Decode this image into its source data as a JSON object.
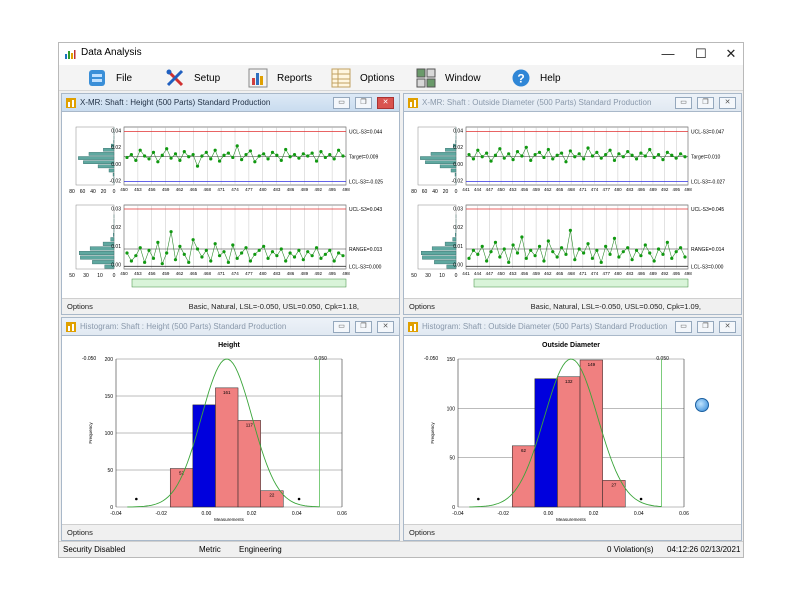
{
  "app": {
    "title": "Data Analysis",
    "window_controls": {
      "minimize": "—",
      "maximize": "☐",
      "close": "✕"
    }
  },
  "menu": [
    {
      "label": "File",
      "icon": "file-cabinet-icon"
    },
    {
      "label": "Setup",
      "icon": "tools-icon"
    },
    {
      "label": "Reports",
      "icon": "bar-report-icon"
    },
    {
      "label": "Options",
      "icon": "options-grid-icon"
    },
    {
      "label": "Window",
      "icon": "window-tile-icon"
    },
    {
      "label": "Help",
      "icon": "help-icon"
    }
  ],
  "windows": {
    "xmr_height": {
      "title": "X-MR: Shaft : Height (500 Parts) Standard Production",
      "options_label": "Options",
      "info": "Basic, Natural, LSL=-0.050, USL=0.050, Cpk=1.18,",
      "x_chart": {
        "ucl": "UCL-S3=0.044",
        "target": "Target=0.009",
        "lcl": "LCL-S3=-0.025",
        "yticks": [
          "0.04",
          "0.02",
          "0.00",
          "-0.02"
        ],
        "hist_xticks": [
          "80",
          "60",
          "40",
          "20",
          "0"
        ],
        "x_ticks": [
          "450",
          "453",
          "456",
          "459",
          "462",
          "465",
          "468",
          "471",
          "474",
          "477",
          "480",
          "483",
          "486",
          "489",
          "492",
          "495",
          "498"
        ],
        "values": [
          0.008,
          0.012,
          0.004,
          0.018,
          0.01,
          0.006,
          0.015,
          0.002,
          0.011,
          0.02,
          0.007,
          0.013,
          0.004,
          0.016,
          0.009,
          0.012,
          -0.004,
          0.01,
          0.015,
          0.006,
          0.018,
          0.003,
          0.011,
          0.014,
          0.008,
          0.024,
          0.005,
          0.012,
          0.017,
          0.002,
          0.01,
          0.013,
          0.006,
          0.015,
          0.011,
          0.004,
          0.019,
          0.009,
          0.012,
          0.007,
          0.013,
          0.01,
          0.014,
          0.003,
          0.016,
          0.008,
          0.012,
          0.006,
          0.018,
          0.01
        ]
      },
      "mr_chart": {
        "ucl": "UCL-S3=0.043",
        "range": "RANGE=0.013",
        "lcl": "LCL-S3=0.000",
        "yticks": [
          "0.03",
          "0.02",
          "0.01",
          "0.00"
        ],
        "hist_xticks": [
          "50",
          "30",
          "10",
          "0"
        ],
        "x_ticks": [
          "450",
          "453",
          "456",
          "459",
          "462",
          "465",
          "468",
          "471",
          "474",
          "477",
          "480",
          "483",
          "486",
          "489",
          "492",
          "495",
          "498"
        ],
        "values": [
          0.01,
          0.004,
          0.008,
          0.014,
          0.003,
          0.012,
          0.006,
          0.018,
          0.002,
          0.01,
          0.026,
          0.005,
          0.015,
          0.009,
          0.003,
          0.02,
          0.013,
          0.007,
          0.012,
          0.004,
          0.017,
          0.008,
          0.011,
          0.003,
          0.016,
          0.006,
          0.01,
          0.014,
          0.004,
          0.009,
          0.012,
          0.015,
          0.006,
          0.011,
          0.008,
          0.013,
          0.004,
          0.01,
          0.007,
          0.012,
          0.005,
          0.011,
          0.008,
          0.014,
          0.006,
          0.009,
          0.012,
          0.004,
          0.01,
          0.008
        ]
      }
    },
    "xmr_od": {
      "title": "X-MR: Shaft : Outside Diameter (500 Parts) Standard Production",
      "options_label": "Options",
      "info": "Basic, Natural, LSL=-0.050, USL=0.050, Cpk=1.09,",
      "x_chart": {
        "ucl": "UCL-S3=0.047",
        "target": "Target=0.010",
        "lcl": "LCL-S3=-0.027",
        "yticks": [
          "0.04",
          "0.02",
          "0.00",
          "-0.02"
        ],
        "hist_xticks": [
          "80",
          "60",
          "40",
          "20",
          "0"
        ],
        "x_ticks": [
          "441",
          "444",
          "447",
          "450",
          "453",
          "456",
          "459",
          "462",
          "465",
          "468",
          "471",
          "474",
          "477",
          "480",
          "483",
          "486",
          "489",
          "492",
          "495",
          "498"
        ],
        "values": [
          0.012,
          0.006,
          0.018,
          0.009,
          0.014,
          0.003,
          0.011,
          0.02,
          0.007,
          0.013,
          0.005,
          0.016,
          0.01,
          0.022,
          0.004,
          0.012,
          0.015,
          0.008,
          0.019,
          0.006,
          0.011,
          0.014,
          0.002,
          0.017,
          0.009,
          0.013,
          0.006,
          0.021,
          0.01,
          0.015,
          0.007,
          0.012,
          0.018,
          0.004,
          0.013,
          0.009,
          0.016,
          0.011,
          0.006,
          0.014,
          0.01,
          0.019,
          0.008,
          0.012,
          0.005,
          0.015,
          0.011,
          0.007,
          0.013,
          0.009
        ]
      },
      "mr_chart": {
        "ucl": "UCL-S3=0.045",
        "range": "RANGE=0.014",
        "lcl": "LCL-S3=0.000",
        "yticks": [
          "0.03",
          "0.02",
          "0.01",
          "0.00"
        ],
        "hist_xticks": [
          "50",
          "30",
          "10",
          "0"
        ],
        "x_ticks": [
          "441",
          "444",
          "447",
          "450",
          "453",
          "456",
          "459",
          "462",
          "465",
          "468",
          "471",
          "474",
          "477",
          "480",
          "483",
          "486",
          "489",
          "492",
          "495",
          "498"
        ],
        "values": [
          0.006,
          0.012,
          0.009,
          0.015,
          0.004,
          0.011,
          0.018,
          0.007,
          0.013,
          0.003,
          0.016,
          0.01,
          0.022,
          0.006,
          0.012,
          0.008,
          0.015,
          0.004,
          0.019,
          0.011,
          0.007,
          0.014,
          0.009,
          0.027,
          0.005,
          0.013,
          0.01,
          0.017,
          0.006,
          0.012,
          0.003,
          0.015,
          0.009,
          0.021,
          0.007,
          0.011,
          0.014,
          0.005,
          0.012,
          0.008,
          0.016,
          0.01,
          0.004,
          0.013,
          0.009,
          0.018,
          0.006,
          0.011,
          0.014,
          0.007
        ]
      }
    },
    "hist_height": {
      "title": "Histogram: Shaft : Height (500 Parts) Standard Production",
      "options_label": "Options"
    },
    "hist_od": {
      "title": "Histogram: Shaft : Outside Diameter (500 Parts) Standard Production",
      "options_label": "Options"
    }
  },
  "chart_data": [
    {
      "type": "bar",
      "title": "Height",
      "xlabel": "Measurements",
      "ylabel": "Frequency",
      "ylim": [
        0,
        200
      ],
      "xlim": [
        -0.04,
        0.06
      ],
      "yticks": [
        "200",
        "150",
        "100",
        "50",
        "0"
      ],
      "xticks": [
        "-0.04",
        "-0.02",
        "0.00",
        "0.02",
        "0.04",
        "0.06"
      ],
      "lsl_label": "-0.050",
      "usl_label": "0.050",
      "usl": 0.05,
      "bins": [
        {
          "from": -0.016,
          "to": -0.006,
          "value": 52,
          "label": "52",
          "color": "#f08080"
        },
        {
          "from": -0.006,
          "to": 0.004,
          "value": 138,
          "label": "",
          "color": "#0000dd"
        },
        {
          "from": 0.004,
          "to": 0.014,
          "value": 161,
          "label": "161",
          "color": "#f08080"
        },
        {
          "from": 0.014,
          "to": 0.024,
          "value": 117,
          "label": "117",
          "color": "#f08080"
        },
        {
          "from": 0.024,
          "to": 0.034,
          "value": 22,
          "label": "22",
          "color": "#f08080"
        }
      ],
      "outliers": [
        -0.031,
        0.041
      ],
      "curve": {
        "mean": 0.009,
        "sd": 0.0112,
        "peak": 200
      }
    },
    {
      "type": "bar",
      "title": "Outside Diameter",
      "xlabel": "Measurements",
      "ylabel": "Frequency",
      "ylim": [
        0,
        150
      ],
      "xlim": [
        -0.04,
        0.06
      ],
      "yticks": [
        "150",
        "100",
        "50",
        "0"
      ],
      "xticks": [
        "-0.04",
        "-0.02",
        "0.00",
        "0.02",
        "0.04",
        "0.06"
      ],
      "lsl_label": "-0.050",
      "usl_label": "0.050",
      "usl": 0.05,
      "bins": [
        {
          "from": -0.016,
          "to": -0.006,
          "value": 62,
          "label": "62",
          "color": "#f08080"
        },
        {
          "from": -0.006,
          "to": 0.004,
          "value": 130,
          "label": "",
          "color": "#0000dd"
        },
        {
          "from": 0.004,
          "to": 0.014,
          "value": 132,
          "label": "132",
          "color": "#f08080"
        },
        {
          "from": 0.014,
          "to": 0.024,
          "value": 149,
          "label": "149",
          "color": "#f08080"
        },
        {
          "from": 0.024,
          "to": 0.034,
          "value": 27,
          "label": "27",
          "color": "#f08080"
        }
      ],
      "outliers": [
        -0.031,
        0.041
      ],
      "curve": {
        "mean": 0.01,
        "sd": 0.0118,
        "peak": 150
      }
    }
  ],
  "statusbar": {
    "security": "Security Disabled",
    "units": "Metric",
    "mode": "Engineering",
    "violations": "0 Violation(s)",
    "datetime": "04:12:26 02/13/2021"
  },
  "colors": {
    "data_point": "#119911",
    "data_line": "#2e8b2e",
    "ucl_line": "#e03030",
    "lcl_line": "#3030e0",
    "hist_bar_pink": "#f08080",
    "hist_bar_blue": "#0000dd"
  }
}
